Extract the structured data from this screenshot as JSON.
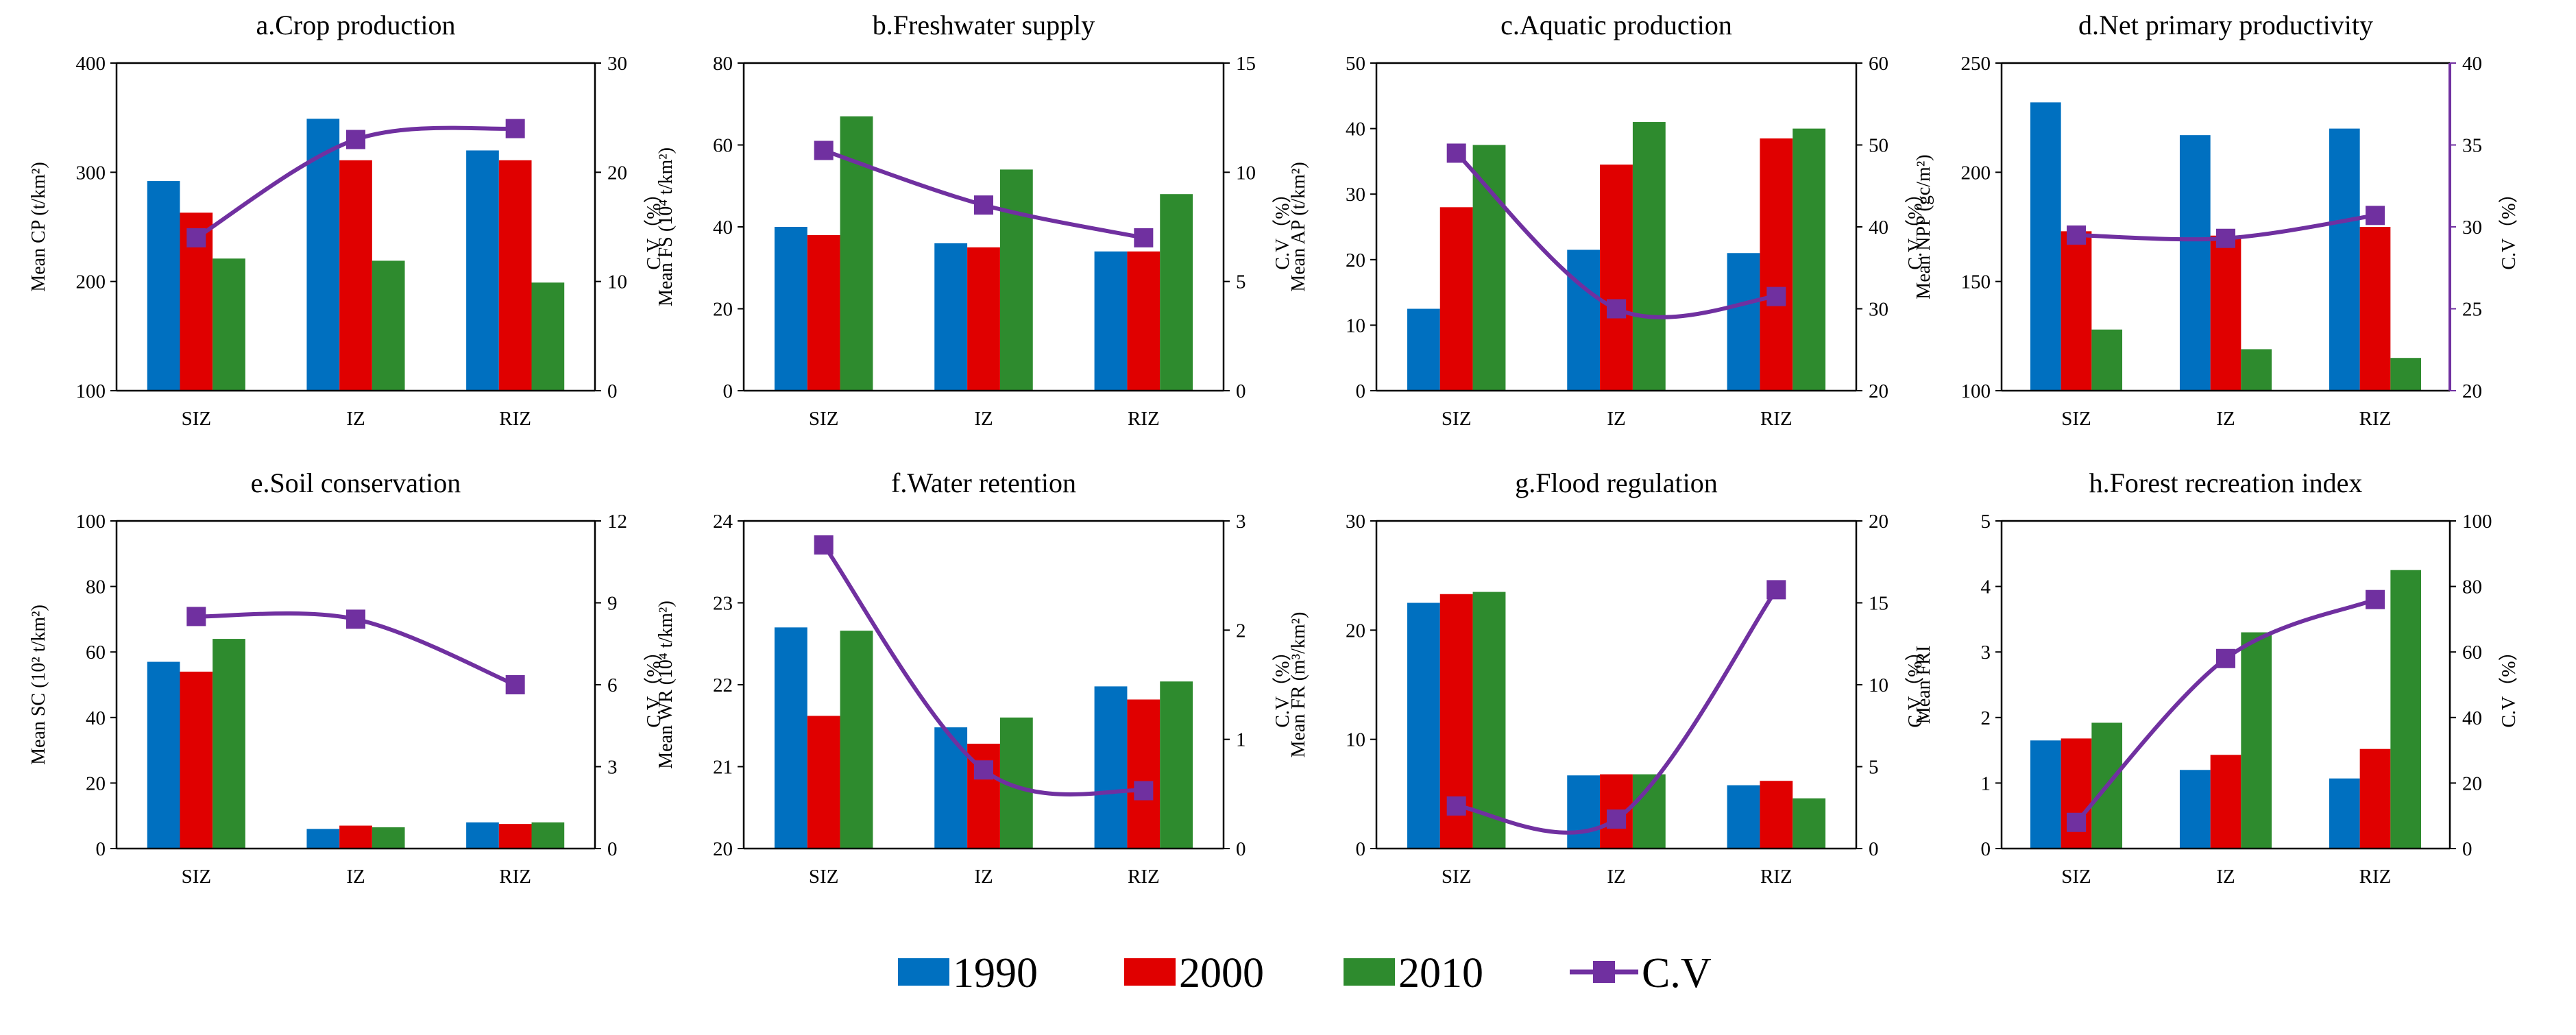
{
  "legend": {
    "items": [
      {
        "label": "1990",
        "color": "#0070c0",
        "kind": "bar"
      },
      {
        "label": "2000",
        "color": "#e00000",
        "kind": "bar"
      },
      {
        "label": "2010",
        "color": "#2e8b2e",
        "kind": "bar"
      },
      {
        "label": "C.V",
        "color": "#7030a0",
        "kind": "line"
      }
    ]
  },
  "chart_data": [
    {
      "type": "bar+line",
      "title": "a.Crop production",
      "ylabel_left": "Mean CP (t/km²)",
      "ylabel_right": "C.V（%）",
      "categories": [
        "SIZ",
        "IZ",
        "RIZ"
      ],
      "ylim_left": [
        100,
        400
      ],
      "yticks_left": [
        100,
        200,
        300,
        400
      ],
      "ylim_right": [
        0,
        30
      ],
      "yticks_right": [
        0,
        10,
        20,
        30
      ],
      "series": [
        {
          "name": "1990",
          "values": [
            292,
            349,
            320
          ]
        },
        {
          "name": "2000",
          "values": [
            263,
            311,
            311
          ]
        },
        {
          "name": "2010",
          "values": [
            221,
            219,
            199
          ]
        }
      ],
      "cv": [
        14,
        23,
        24
      ],
      "purple_right_axis": false
    },
    {
      "type": "bar+line",
      "title": "b.Freshwater supply",
      "ylabel_left": "Mean FS (10⁴ t/km²)",
      "ylabel_right": "C.V（%）",
      "categories": [
        "SIZ",
        "IZ",
        "RIZ"
      ],
      "ylim_left": [
        0,
        80
      ],
      "yticks_left": [
        0,
        20,
        40,
        60,
        80
      ],
      "ylim_right": [
        0,
        15
      ],
      "yticks_right": [
        0,
        5,
        10,
        15
      ],
      "series": [
        {
          "name": "1990",
          "values": [
            40,
            36,
            34
          ]
        },
        {
          "name": "2000",
          "values": [
            38,
            35,
            34
          ]
        },
        {
          "name": "2010",
          "values": [
            67,
            54,
            48
          ]
        }
      ],
      "cv": [
        11,
        8.5,
        7
      ],
      "purple_right_axis": false
    },
    {
      "type": "bar+line",
      "title": "c.Aquatic production",
      "ylabel_left": "Mean AP (t/km²)",
      "ylabel_right": "C.V（%）",
      "categories": [
        "SIZ",
        "IZ",
        "RIZ"
      ],
      "ylim_left": [
        0,
        50
      ],
      "yticks_left": [
        0,
        10,
        20,
        30,
        40,
        50
      ],
      "ylim_right": [
        20,
        60
      ],
      "yticks_right": [
        20,
        30,
        40,
        50,
        60
      ],
      "series": [
        {
          "name": "1990",
          "values": [
            12.5,
            21.5,
            21
          ]
        },
        {
          "name": "2000",
          "values": [
            28,
            34.5,
            38.5
          ]
        },
        {
          "name": "2010",
          "values": [
            37.5,
            41,
            40
          ]
        }
      ],
      "cv": [
        49,
        30,
        31.5
      ],
      "purple_right_axis": false
    },
    {
      "type": "bar+line",
      "title": "d.Net primary productivity",
      "ylabel_left": "Mean NPP (gc/m²)",
      "ylabel_right": "C.V（%）",
      "categories": [
        "SIZ",
        "IZ",
        "RIZ"
      ],
      "ylim_left": [
        100,
        250
      ],
      "yticks_left": [
        100,
        150,
        200,
        250
      ],
      "ylim_right": [
        20,
        40
      ],
      "yticks_right": [
        20,
        25,
        30,
        35,
        40
      ],
      "series": [
        {
          "name": "1990",
          "values": [
            232,
            217,
            220
          ]
        },
        {
          "name": "2000",
          "values": [
            173,
            171,
            175
          ]
        },
        {
          "name": "2010",
          "values": [
            128,
            119,
            115
          ]
        }
      ],
      "cv": [
        29.5,
        29.3,
        30.7
      ],
      "purple_right_axis": true
    },
    {
      "type": "bar+line",
      "title": "e.Soil conservation",
      "ylabel_left": "Mean SC (10² t/km²)",
      "ylabel_right": "C.V（%）",
      "categories": [
        "SIZ",
        "IZ",
        "RIZ"
      ],
      "ylim_left": [
        0,
        100
      ],
      "yticks_left": [
        0,
        20,
        40,
        60,
        80,
        100
      ],
      "ylim_right": [
        0,
        12
      ],
      "yticks_right": [
        0,
        3,
        6,
        9,
        12
      ],
      "series": [
        {
          "name": "1990",
          "values": [
            57,
            6,
            8
          ]
        },
        {
          "name": "2000",
          "values": [
            54,
            7,
            7.5
          ]
        },
        {
          "name": "2010",
          "values": [
            64,
            6.5,
            8
          ]
        }
      ],
      "cv": [
        8.5,
        8.4,
        6
      ],
      "purple_right_axis": false
    },
    {
      "type": "bar+line",
      "title": "f.Water retention",
      "ylabel_left": "Mean WR (10⁴ t/km²)",
      "ylabel_right": "C.V（%）",
      "categories": [
        "SIZ",
        "IZ",
        "RIZ"
      ],
      "ylim_left": [
        20,
        24
      ],
      "yticks_left": [
        20,
        21,
        22,
        23,
        24
      ],
      "ylim_right": [
        0,
        3
      ],
      "yticks_right": [
        0,
        1,
        2,
        3
      ],
      "series": [
        {
          "name": "1990",
          "values": [
            22.7,
            21.48,
            21.98
          ]
        },
        {
          "name": "2000",
          "values": [
            21.62,
            21.28,
            21.82
          ]
        },
        {
          "name": "2010",
          "values": [
            22.66,
            21.6,
            22.04
          ]
        }
      ],
      "cv": [
        2.78,
        0.72,
        0.53
      ],
      "purple_right_axis": false
    },
    {
      "type": "bar+line",
      "title": "g.Flood regulation",
      "ylabel_left": "Mean FR (m³/km²)",
      "ylabel_right": "C.V（%）",
      "categories": [
        "SIZ",
        "IZ",
        "RIZ"
      ],
      "ylim_left": [
        0,
        30
      ],
      "yticks_left": [
        0,
        10,
        20,
        30
      ],
      "ylim_right": [
        0,
        20
      ],
      "yticks_right": [
        0,
        5,
        10,
        15,
        20
      ],
      "series": [
        {
          "name": "1990",
          "values": [
            22.5,
            6.7,
            5.8
          ]
        },
        {
          "name": "2000",
          "values": [
            23.3,
            6.8,
            6.2
          ]
        },
        {
          "name": "2010",
          "values": [
            23.5,
            6.8,
            4.6
          ]
        }
      ],
      "cv": [
        2.6,
        1.8,
        15.8
      ],
      "purple_right_axis": false
    },
    {
      "type": "bar+line",
      "title": "h.Forest recreation index",
      "ylabel_left": "Mean FRI",
      "ylabel_right": "C.V（%）",
      "categories": [
        "SIZ",
        "IZ",
        "RIZ"
      ],
      "ylim_left": [
        0,
        5
      ],
      "yticks_left": [
        0,
        1,
        2,
        3,
        4,
        5
      ],
      "ylim_right": [
        0,
        100
      ],
      "yticks_right": [
        0,
        20,
        40,
        60,
        80,
        100
      ],
      "series": [
        {
          "name": "1990",
          "values": [
            1.65,
            1.2,
            1.07
          ]
        },
        {
          "name": "2000",
          "values": [
            1.68,
            1.43,
            1.52
          ]
        },
        {
          "name": "2010",
          "values": [
            1.92,
            3.3,
            4.25
          ]
        }
      ],
      "cv": [
        8,
        58,
        76
      ],
      "purple_right_axis": false
    }
  ]
}
